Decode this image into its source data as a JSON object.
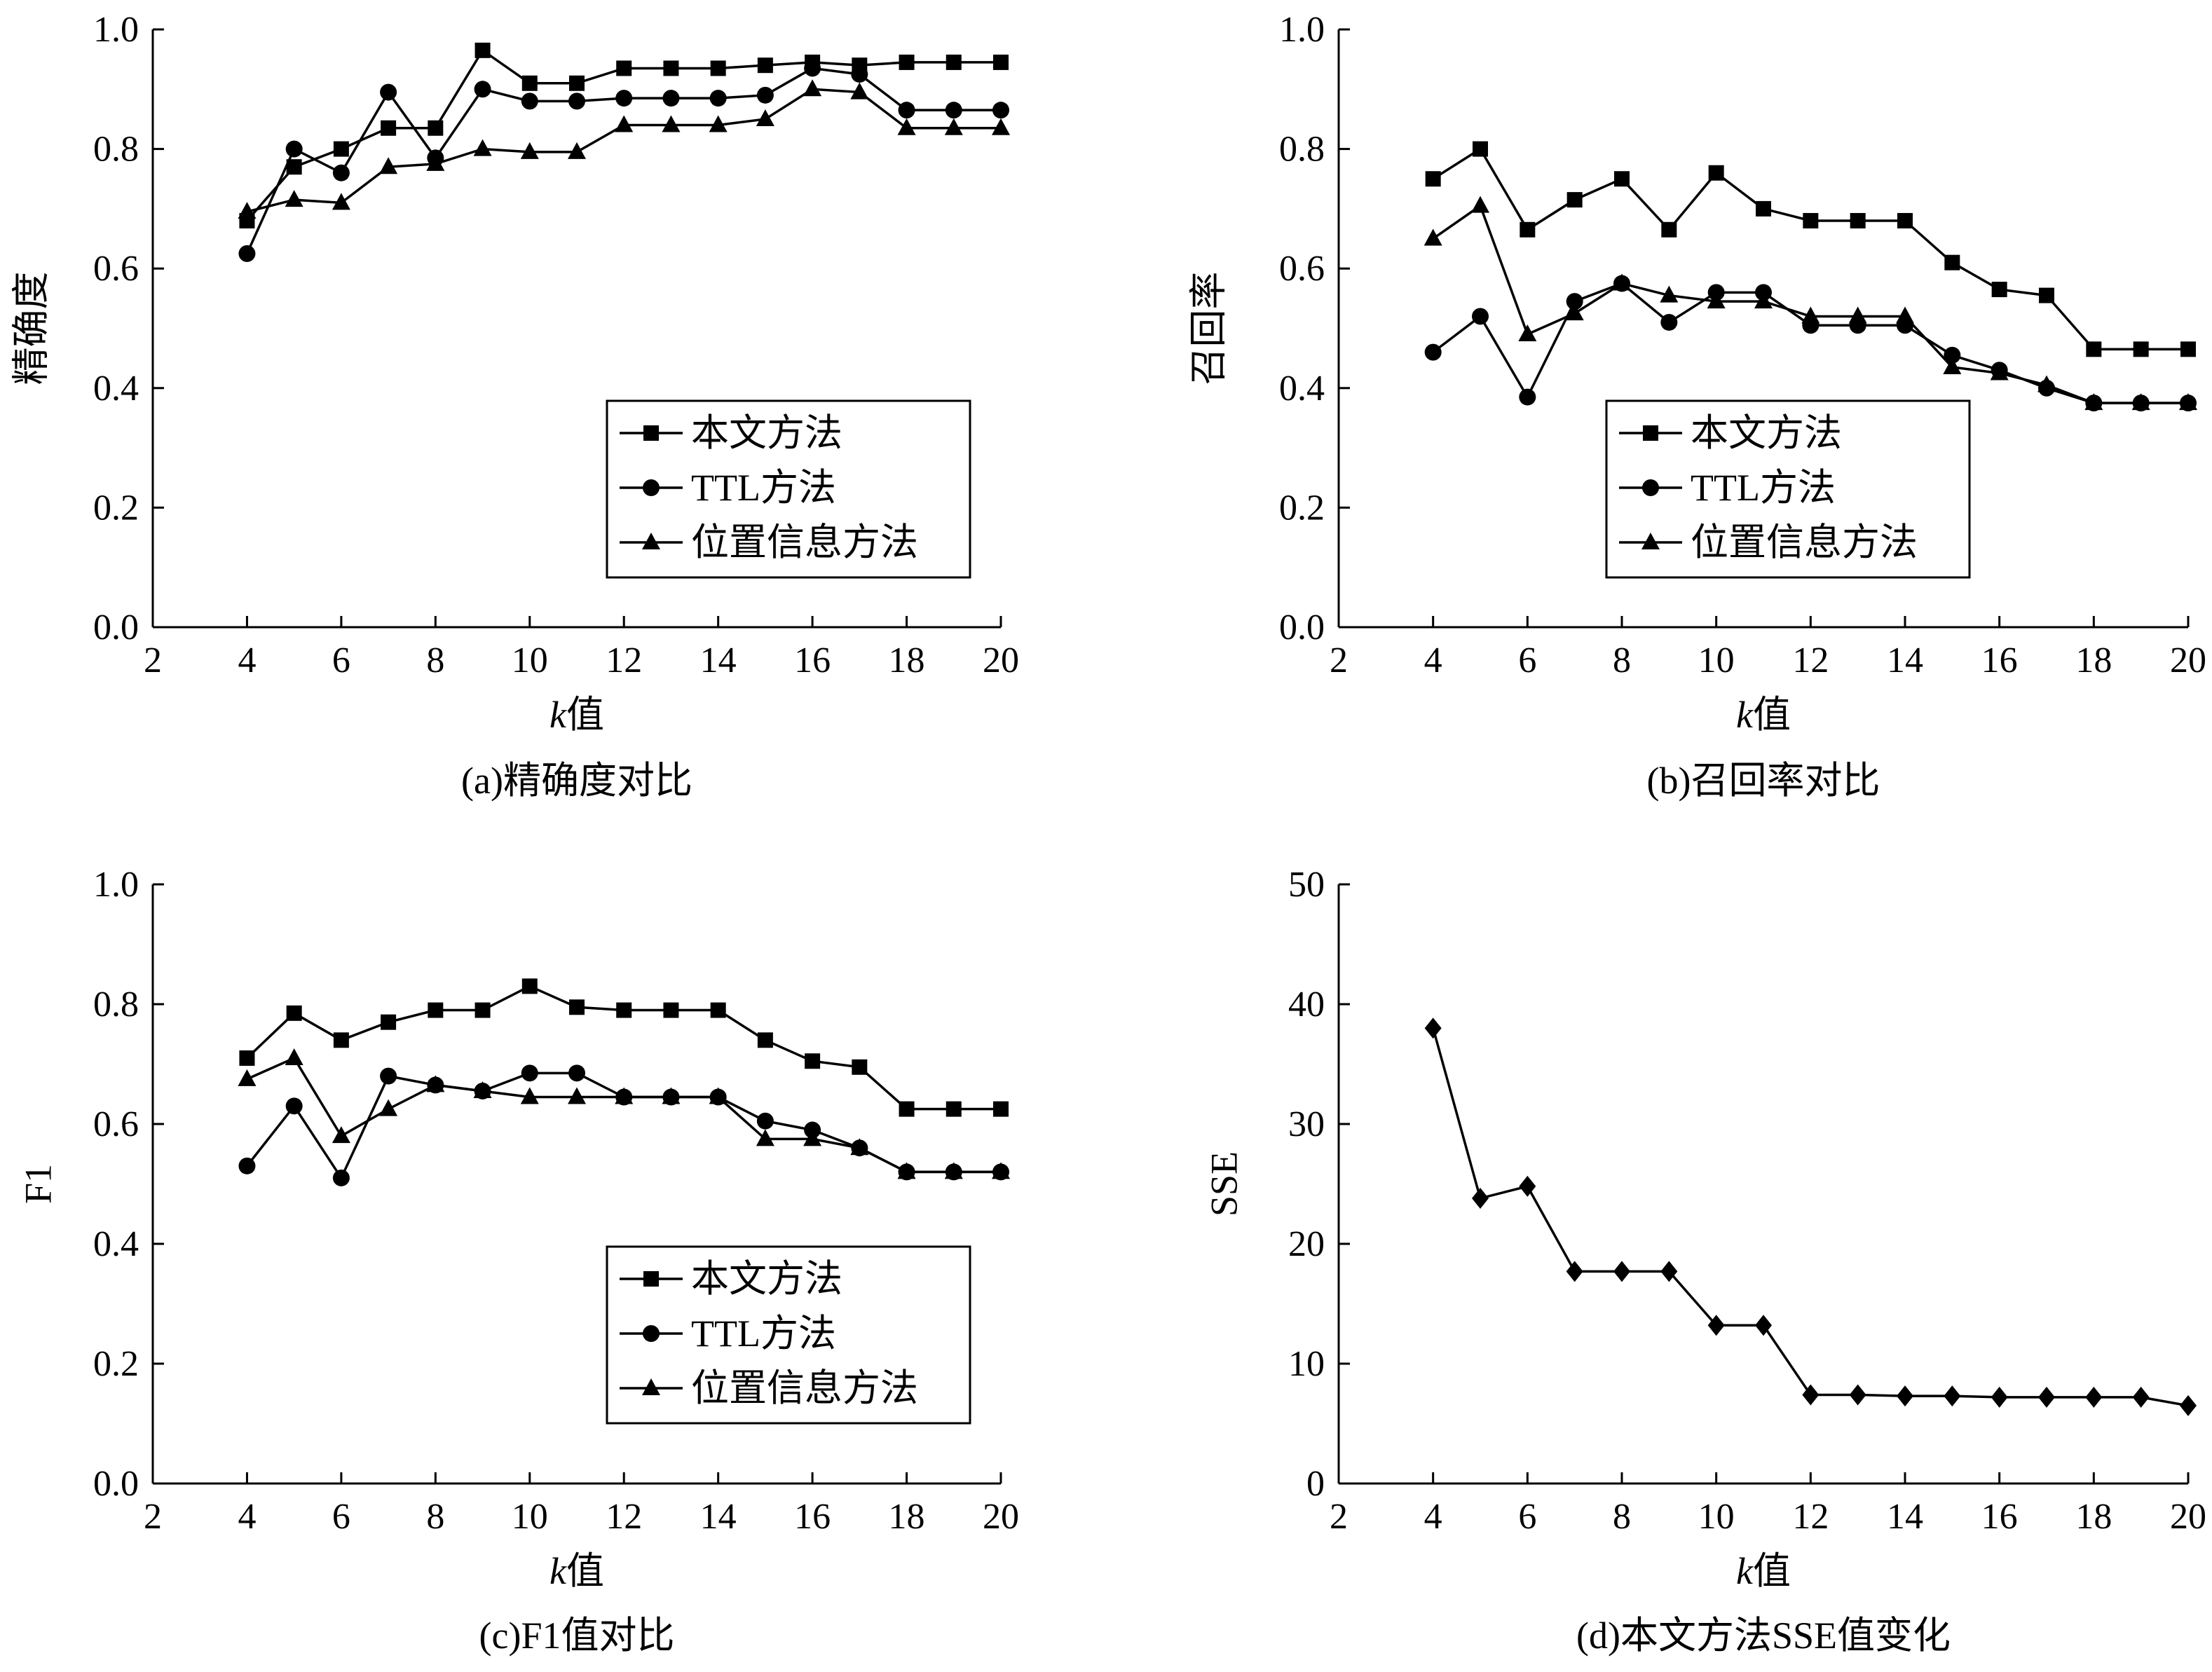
{
  "chart_data": [
    {
      "id": "a",
      "type": "line",
      "caption": "(a)精确度对比",
      "ylabel": "精确度",
      "xlabel": "k值",
      "xlim": [
        2,
        20
      ],
      "ylim": [
        0.0,
        1.0
      ],
      "xticks": [
        "2",
        "4",
        "6",
        "8",
        "10",
        "12",
        "14",
        "16",
        "18",
        "20"
      ],
      "yticks": [
        "0.0",
        "0.2",
        "0.4",
        "0.6",
        "0.8",
        "1.0"
      ],
      "x": [
        4,
        5,
        6,
        7,
        8,
        9,
        10,
        11,
        12,
        13,
        14,
        15,
        16,
        17,
        18,
        19,
        20
      ],
      "legend_position": "bottom-right",
      "series": [
        {
          "name": "本文方法",
          "marker": "square",
          "values": [
            0.68,
            0.77,
            0.8,
            0.835,
            0.835,
            0.965,
            0.91,
            0.91,
            0.935,
            0.935,
            0.935,
            0.94,
            0.945,
            0.94,
            0.945,
            0.945,
            0.945
          ]
        },
        {
          "name": "TTL方法",
          "marker": "circle",
          "values": [
            0.625,
            0.8,
            0.76,
            0.895,
            0.785,
            0.9,
            0.88,
            0.88,
            0.885,
            0.885,
            0.885,
            0.89,
            0.935,
            0.925,
            0.865,
            0.865,
            0.865
          ]
        },
        {
          "name": "位置信息方法",
          "marker": "triangle",
          "values": [
            0.695,
            0.715,
            0.71,
            0.77,
            0.775,
            0.8,
            0.795,
            0.795,
            0.84,
            0.84,
            0.84,
            0.85,
            0.9,
            0.895,
            0.835,
            0.835,
            0.835
          ]
        }
      ]
    },
    {
      "id": "b",
      "type": "line",
      "caption": "(b)召回率对比",
      "ylabel": "召回率",
      "xlabel": "k值",
      "xlim": [
        2,
        20
      ],
      "ylim": [
        0.0,
        1.0
      ],
      "xticks": [
        "2",
        "4",
        "6",
        "8",
        "10",
        "12",
        "14",
        "16",
        "18",
        "20"
      ],
      "yticks": [
        "0.0",
        "0.2",
        "0.4",
        "0.6",
        "0.8",
        "1.0"
      ],
      "x": [
        4,
        5,
        6,
        7,
        8,
        9,
        10,
        11,
        12,
        13,
        14,
        15,
        16,
        17,
        18,
        19,
        20
      ],
      "legend_position": "bottom-right",
      "series": [
        {
          "name": "本文方法",
          "marker": "square",
          "values": [
            0.75,
            0.8,
            0.665,
            0.715,
            0.75,
            0.665,
            0.76,
            0.7,
            0.68,
            0.68,
            0.68,
            0.61,
            0.565,
            0.555,
            0.465,
            0.465,
            0.465
          ]
        },
        {
          "name": "TTL方法",
          "marker": "circle",
          "values": [
            0.46,
            0.52,
            0.385,
            0.545,
            0.575,
            0.51,
            0.56,
            0.56,
            0.505,
            0.505,
            0.505,
            0.455,
            0.43,
            0.4,
            0.375,
            0.375,
            0.375
          ]
        },
        {
          "name": "位置信息方法",
          "marker": "triangle",
          "values": [
            0.65,
            0.705,
            0.49,
            0.525,
            0.575,
            0.555,
            0.545,
            0.545,
            0.52,
            0.52,
            0.52,
            0.435,
            0.425,
            0.405,
            0.375,
            0.375,
            0.375
          ]
        }
      ]
    },
    {
      "id": "c",
      "type": "line",
      "caption": "(c)F1值对比",
      "ylabel": "F1",
      "xlabel": "k值",
      "xlim": [
        2,
        20
      ],
      "ylim": [
        0.0,
        1.0
      ],
      "xticks": [
        "2",
        "4",
        "6",
        "8",
        "10",
        "12",
        "14",
        "16",
        "18",
        "20"
      ],
      "yticks": [
        "0.0",
        "0.2",
        "0.4",
        "0.6",
        "0.8",
        "1.0"
      ],
      "x": [
        4,
        5,
        6,
        7,
        8,
        9,
        10,
        11,
        12,
        13,
        14,
        15,
        16,
        17,
        18,
        19,
        20
      ],
      "legend_position": "bottom-right",
      "series": [
        {
          "name": "本文方法",
          "marker": "square",
          "values": [
            0.71,
            0.785,
            0.74,
            0.77,
            0.79,
            0.79,
            0.83,
            0.795,
            0.79,
            0.79,
            0.79,
            0.74,
            0.705,
            0.695,
            0.625,
            0.625,
            0.625
          ]
        },
        {
          "name": "TTL方法",
          "marker": "circle",
          "values": [
            0.53,
            0.63,
            0.51,
            0.68,
            0.665,
            0.655,
            0.685,
            0.685,
            0.645,
            0.645,
            0.645,
            0.605,
            0.59,
            0.56,
            0.52,
            0.52,
            0.52
          ]
        },
        {
          "name": "位置信息方法",
          "marker": "triangle",
          "values": [
            0.675,
            0.71,
            0.58,
            0.625,
            0.665,
            0.655,
            0.645,
            0.645,
            0.645,
            0.645,
            0.645,
            0.575,
            0.575,
            0.56,
            0.52,
            0.52,
            0.52
          ]
        }
      ]
    },
    {
      "id": "d",
      "type": "line",
      "caption": "(d)本文方法SSE值变化",
      "ylabel": "SSE",
      "xlabel": "k值",
      "xlim": [
        2,
        20
      ],
      "ylim": [
        0,
        50
      ],
      "xticks": [
        "2",
        "4",
        "6",
        "8",
        "10",
        "12",
        "14",
        "16",
        "18",
        "20"
      ],
      "yticks": [
        "0",
        "10",
        "20",
        "30",
        "40",
        "50"
      ],
      "x": [
        4,
        5,
        6,
        7,
        8,
        9,
        10,
        11,
        12,
        13,
        14,
        15,
        16,
        17,
        18,
        19,
        20
      ],
      "legend_position": "",
      "series": [
        {
          "name": "",
          "marker": "diamond",
          "values": [
            38,
            23.8,
            24.8,
            17.7,
            17.7,
            17.7,
            13.2,
            13.2,
            7.4,
            7.4,
            7.3,
            7.3,
            7.2,
            7.2,
            7.2,
            7.2,
            6.5
          ]
        }
      ]
    }
  ]
}
